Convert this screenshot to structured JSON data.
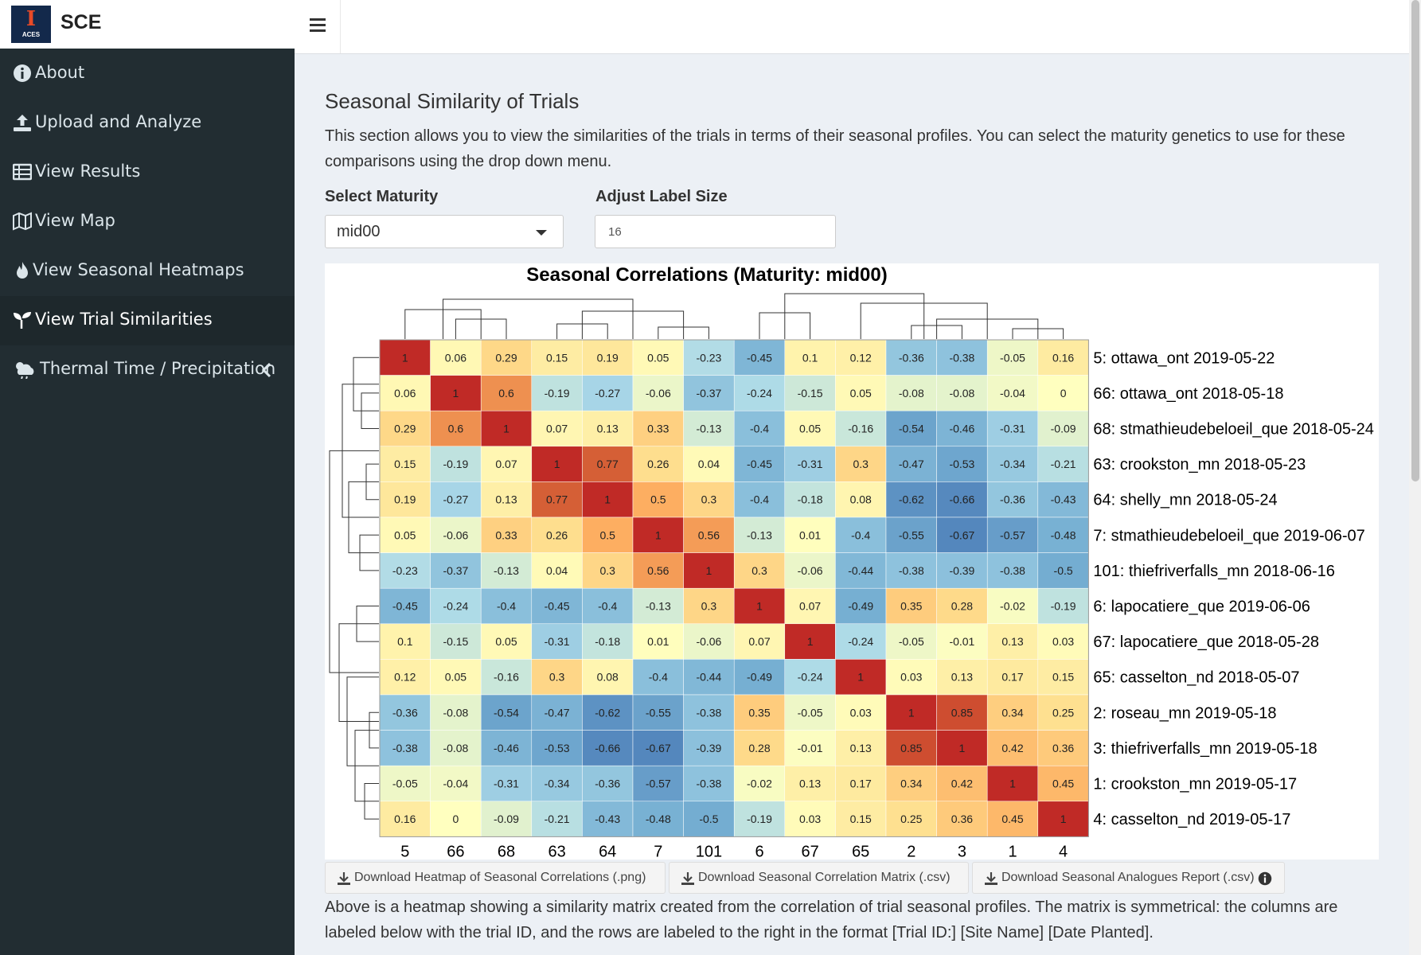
{
  "app": {
    "title": "SCE",
    "logo_text": "ACES"
  },
  "sidebar": {
    "items": [
      {
        "label": "About",
        "icon": "info-circle-icon",
        "active": false
      },
      {
        "label": "Upload and Analyze",
        "icon": "upload-icon",
        "active": false
      },
      {
        "label": "View Results",
        "icon": "table-icon",
        "active": false
      },
      {
        "label": "View Map",
        "icon": "map-icon",
        "active": false
      },
      {
        "label": "View Seasonal Heatmaps",
        "icon": "fire-icon",
        "active": false
      },
      {
        "label": "View Trial Similarities",
        "icon": "seedling-icon",
        "active": true
      },
      {
        "label": "Thermal Time / Precipitation",
        "icon": "cloud-sun-rain-icon",
        "active": false
      }
    ]
  },
  "main": {
    "title": "Seasonal Similarity of Trials",
    "description": "This section allows you to view the similarities of the trials in terms of their seasonal profiles. You can select the maturity genetics to use for these comparisons using the drop down menu.",
    "select_maturity": {
      "label": "Select Maturity",
      "value": "mid00"
    },
    "label_size": {
      "label": "Adjust Label Size",
      "value": "16"
    },
    "downloads": [
      {
        "label": "Download Heatmap of Seasonal Correlations (.png)"
      },
      {
        "label": "Download Seasonal Correlation Matrix (.csv)"
      },
      {
        "label": "Download Seasonal Analogues Report (.csv)"
      }
    ],
    "footer": "Above is a heatmap showing a similarity matrix created from the correlation of trial seasonal profiles. The matrix is symmetrical: the columns are labeled below with the trial ID, and the rows are labeled to the right in the format [Trial ID:] [Site Name] [Date Planted]."
  },
  "colors": {
    "sidebar_bg": "#222d32",
    "sidebar_active": "#1e282c",
    "content_bg": "#ecf0f5",
    "logo_bg": "#13294b",
    "logo_orange": "#e84a27"
  },
  "chart_data": {
    "type": "heatmap",
    "title": "Seasonal Correlations (Maturity: mid00)",
    "columns": [
      "5",
      "66",
      "68",
      "63",
      "64",
      "7",
      "101",
      "6",
      "67",
      "65",
      "2",
      "3",
      "1",
      "4"
    ],
    "rows": [
      "5: ottawa_ont 2019-05-22",
      "66: ottawa_ont 2018-05-18",
      "68: stmathieudebeloeil_que 2018-05-24",
      "63: crookston_mn 2018-05-23",
      "64: shelly_mn 2018-05-24",
      "7: stmathieudebeloeil_que 2019-06-07",
      "101: thiefriverfalls_mn 2018-06-16",
      "6: lapocatiere_que 2019-06-06",
      "67: lapocatiere_que 2018-05-28",
      "65: casselton_nd 2018-05-07",
      "2: roseau_mn 2019-05-18",
      "3: thiefriverfalls_mn 2019-05-18",
      "1: crookston_mn 2019-05-17",
      "4: casselton_nd 2019-05-17"
    ],
    "values": [
      [
        1,
        0.06,
        0.29,
        0.15,
        0.19,
        0.05,
        -0.23,
        -0.45,
        0.1,
        0.12,
        -0.36,
        -0.38,
        -0.05,
        0.16
      ],
      [
        0.06,
        1,
        0.6,
        -0.19,
        -0.27,
        -0.06,
        -0.37,
        -0.24,
        -0.15,
        0.05,
        -0.08,
        -0.08,
        -0.04,
        0
      ],
      [
        0.29,
        0.6,
        1,
        0.07,
        0.13,
        0.33,
        -0.13,
        -0.4,
        0.05,
        -0.16,
        -0.54,
        -0.46,
        -0.31,
        -0.09
      ],
      [
        0.15,
        -0.19,
        0.07,
        1,
        0.77,
        0.26,
        0.04,
        -0.45,
        -0.31,
        0.3,
        -0.47,
        -0.53,
        -0.34,
        -0.21
      ],
      [
        0.19,
        -0.27,
        0.13,
        0.77,
        1,
        0.5,
        0.3,
        -0.4,
        -0.18,
        0.08,
        -0.62,
        -0.66,
        -0.36,
        -0.43
      ],
      [
        0.05,
        -0.06,
        0.33,
        0.26,
        0.5,
        1,
        0.56,
        -0.13,
        0.01,
        -0.4,
        -0.55,
        -0.67,
        -0.57,
        -0.48
      ],
      [
        -0.23,
        -0.37,
        -0.13,
        0.04,
        0.3,
        0.56,
        1,
        0.3,
        -0.06,
        -0.44,
        -0.38,
        -0.39,
        -0.38,
        -0.5
      ],
      [
        -0.45,
        -0.24,
        -0.4,
        -0.45,
        -0.4,
        -0.13,
        0.3,
        1,
        0.07,
        -0.49,
        0.35,
        0.28,
        -0.02,
        -0.19
      ],
      [
        0.1,
        -0.15,
        0.05,
        -0.31,
        -0.18,
        0.01,
        -0.06,
        0.07,
        1,
        -0.24,
        -0.05,
        -0.01,
        0.13,
        0.03
      ],
      [
        0.12,
        0.05,
        -0.16,
        0.3,
        0.08,
        -0.4,
        -0.44,
        -0.49,
        -0.24,
        1,
        0.03,
        0.13,
        0.17,
        0.15
      ],
      [
        -0.36,
        -0.08,
        -0.54,
        -0.47,
        -0.62,
        -0.55,
        -0.38,
        0.35,
        -0.05,
        0.03,
        1,
        0.85,
        0.34,
        0.25
      ],
      [
        -0.38,
        -0.08,
        -0.46,
        -0.53,
        -0.66,
        -0.67,
        -0.39,
        0.28,
        -0.01,
        0.13,
        0.85,
        1,
        0.42,
        0.36
      ],
      [
        -0.05,
        -0.04,
        -0.31,
        -0.34,
        -0.36,
        -0.57,
        -0.38,
        -0.02,
        0.13,
        0.17,
        0.34,
        0.42,
        1,
        0.45
      ],
      [
        0.16,
        0,
        -0.09,
        -0.21,
        -0.43,
        -0.48,
        -0.5,
        -0.19,
        0.03,
        0.15,
        0.25,
        0.36,
        0.45,
        1
      ]
    ],
    "value_range": [
      -1,
      1
    ],
    "color_scale": "RdYlBu reversed",
    "dendrograms": "top and left"
  }
}
